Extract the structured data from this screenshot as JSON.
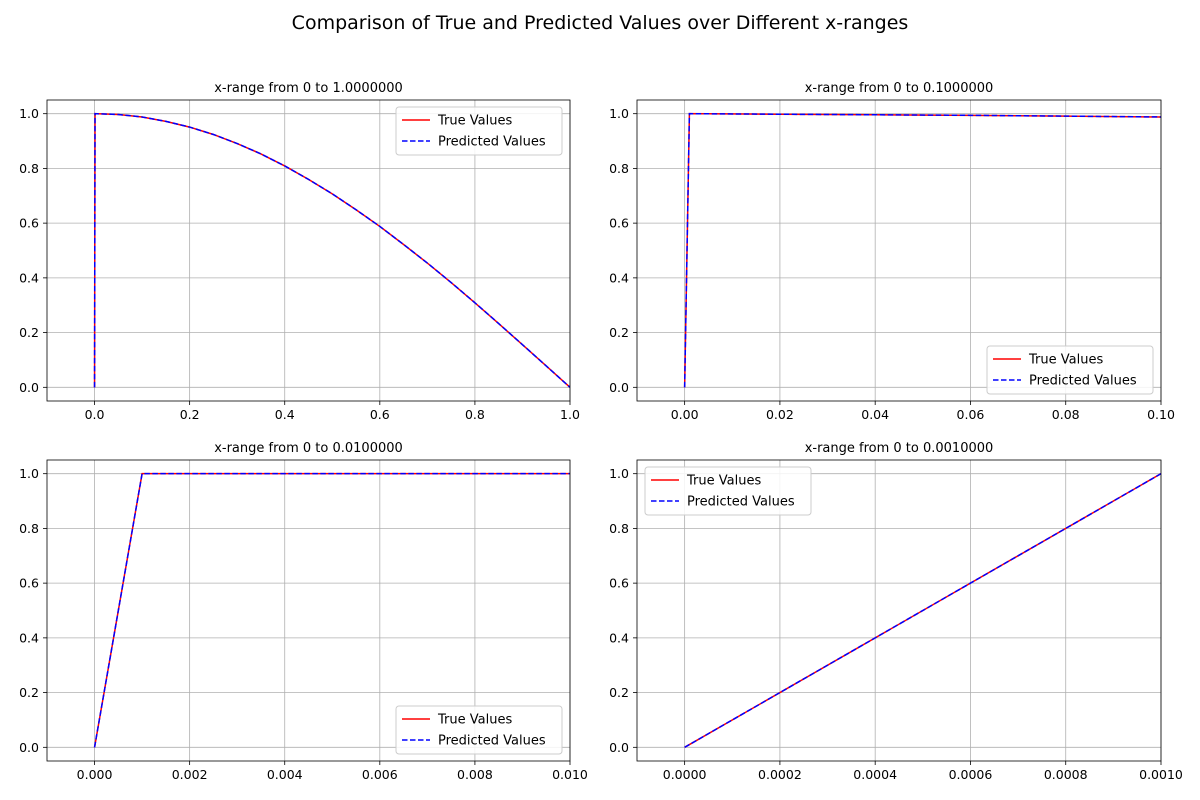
{
  "figure": {
    "title": "Comparison of True and Predicted Values over Different x-ranges"
  },
  "colors": {
    "true_series": "#ff0000",
    "predicted_series": "#0000ff",
    "grid": "#b0b0b0",
    "axes": "#000000"
  },
  "chart_data": [
    {
      "type": "line",
      "title": "x-range from 0 to 1.0000000",
      "xlabel": "",
      "ylabel": "",
      "xlim": [
        -0.1,
        1.0
      ],
      "ylim": [
        -0.05,
        1.05
      ],
      "xticks": [
        0.0,
        0.2,
        0.4,
        0.6,
        0.8,
        1.0
      ],
      "xtick_labels": [
        "0.0",
        "0.2",
        "0.4",
        "0.6",
        "0.8",
        "1.0"
      ],
      "yticks": [
        0.0,
        0.2,
        0.4,
        0.6,
        0.8,
        1.0
      ],
      "ytick_labels": [
        "0.0",
        "0.2",
        "0.4",
        "0.6",
        "0.8",
        "1.0"
      ],
      "grid": true,
      "legend_position": "upper right",
      "series": [
        {
          "name": "True Values",
          "style": "solid",
          "x": [
            0,
            0.001,
            0.05,
            0.1,
            0.15,
            0.2,
            0.25,
            0.3,
            0.35,
            0.4,
            0.45,
            0.5,
            0.55,
            0.6,
            0.65,
            0.7,
            0.75,
            0.8,
            0.85,
            0.9,
            0.95,
            1.0
          ],
          "y": [
            0,
            1.0,
            0.997,
            0.988,
            0.972,
            0.951,
            0.924,
            0.891,
            0.853,
            0.809,
            0.76,
            0.707,
            0.649,
            0.588,
            0.522,
            0.454,
            0.383,
            0.309,
            0.233,
            0.156,
            0.078,
            0.0
          ]
        },
        {
          "name": "Predicted Values",
          "style": "dashed",
          "x": [
            0,
            0.001,
            0.05,
            0.1,
            0.15,
            0.2,
            0.25,
            0.3,
            0.35,
            0.4,
            0.45,
            0.5,
            0.55,
            0.6,
            0.65,
            0.7,
            0.75,
            0.8,
            0.85,
            0.9,
            0.95,
            1.0
          ],
          "y": [
            0,
            1.0,
            0.997,
            0.988,
            0.972,
            0.951,
            0.924,
            0.891,
            0.853,
            0.809,
            0.76,
            0.707,
            0.649,
            0.588,
            0.522,
            0.454,
            0.383,
            0.309,
            0.233,
            0.156,
            0.078,
            0.0
          ]
        }
      ]
    },
    {
      "type": "line",
      "title": "x-range from 0 to 0.1000000",
      "xlabel": "",
      "ylabel": "",
      "xlim": [
        -0.01,
        0.1
      ],
      "ylim": [
        -0.05,
        1.05
      ],
      "xticks": [
        0.0,
        0.02,
        0.04,
        0.06,
        0.08,
        0.1
      ],
      "xtick_labels": [
        "0.00",
        "0.02",
        "0.04",
        "0.06",
        "0.08",
        "0.10"
      ],
      "yticks": [
        0.0,
        0.2,
        0.4,
        0.6,
        0.8,
        1.0
      ],
      "ytick_labels": [
        "0.0",
        "0.2",
        "0.4",
        "0.6",
        "0.8",
        "1.0"
      ],
      "grid": true,
      "legend_position": "lower right",
      "series": [
        {
          "name": "True Values",
          "style": "solid",
          "x": [
            0,
            0.001,
            0.02,
            0.04,
            0.06,
            0.08,
            0.1
          ],
          "y": [
            0,
            1.0,
            0.998,
            0.996,
            0.994,
            0.991,
            0.988
          ]
        },
        {
          "name": "Predicted Values",
          "style": "dashed",
          "x": [
            0,
            0.001,
            0.02,
            0.04,
            0.06,
            0.08,
            0.1
          ],
          "y": [
            0,
            1.0,
            0.998,
            0.996,
            0.994,
            0.991,
            0.988
          ]
        }
      ]
    },
    {
      "type": "line",
      "title": "x-range from 0 to 0.0100000",
      "xlabel": "",
      "ylabel": "",
      "xlim": [
        -0.001,
        0.01
      ],
      "ylim": [
        -0.05,
        1.05
      ],
      "xticks": [
        0.0,
        0.002,
        0.004,
        0.006,
        0.008,
        0.01
      ],
      "xtick_labels": [
        "0.000",
        "0.002",
        "0.004",
        "0.006",
        "0.008",
        "0.010"
      ],
      "yticks": [
        0.0,
        0.2,
        0.4,
        0.6,
        0.8,
        1.0
      ],
      "ytick_labels": [
        "0.0",
        "0.2",
        "0.4",
        "0.6",
        "0.8",
        "1.0"
      ],
      "grid": true,
      "legend_position": "lower right",
      "series": [
        {
          "name": "True Values",
          "style": "solid",
          "x": [
            0,
            0.001,
            0.005,
            0.01
          ],
          "y": [
            0,
            1.0,
            1.0,
            1.0
          ]
        },
        {
          "name": "Predicted Values",
          "style": "dashed",
          "x": [
            0,
            0.001,
            0.005,
            0.01
          ],
          "y": [
            0,
            1.0,
            1.0,
            1.0
          ]
        }
      ]
    },
    {
      "type": "line",
      "title": "x-range from 0 to 0.0010000",
      "xlabel": "",
      "ylabel": "",
      "xlim": [
        -0.0001,
        0.001
      ],
      "ylim": [
        -0.05,
        1.05
      ],
      "xticks": [
        0.0,
        0.0002,
        0.0004,
        0.0006,
        0.0008,
        0.001
      ],
      "xtick_labels": [
        "0.0000",
        "0.0002",
        "0.0004",
        "0.0006",
        "0.0008",
        "0.0010"
      ],
      "yticks": [
        0.0,
        0.2,
        0.4,
        0.6,
        0.8,
        1.0
      ],
      "ytick_labels": [
        "0.0",
        "0.2",
        "0.4",
        "0.6",
        "0.8",
        "1.0"
      ],
      "grid": true,
      "legend_position": "upper left",
      "series": [
        {
          "name": "True Values",
          "style": "solid",
          "x": [
            0,
            0.001
          ],
          "y": [
            0,
            1.0
          ]
        },
        {
          "name": "Predicted Values",
          "style": "dashed",
          "x": [
            0,
            0.001
          ],
          "y": [
            0,
            1.0
          ]
        }
      ]
    }
  ]
}
